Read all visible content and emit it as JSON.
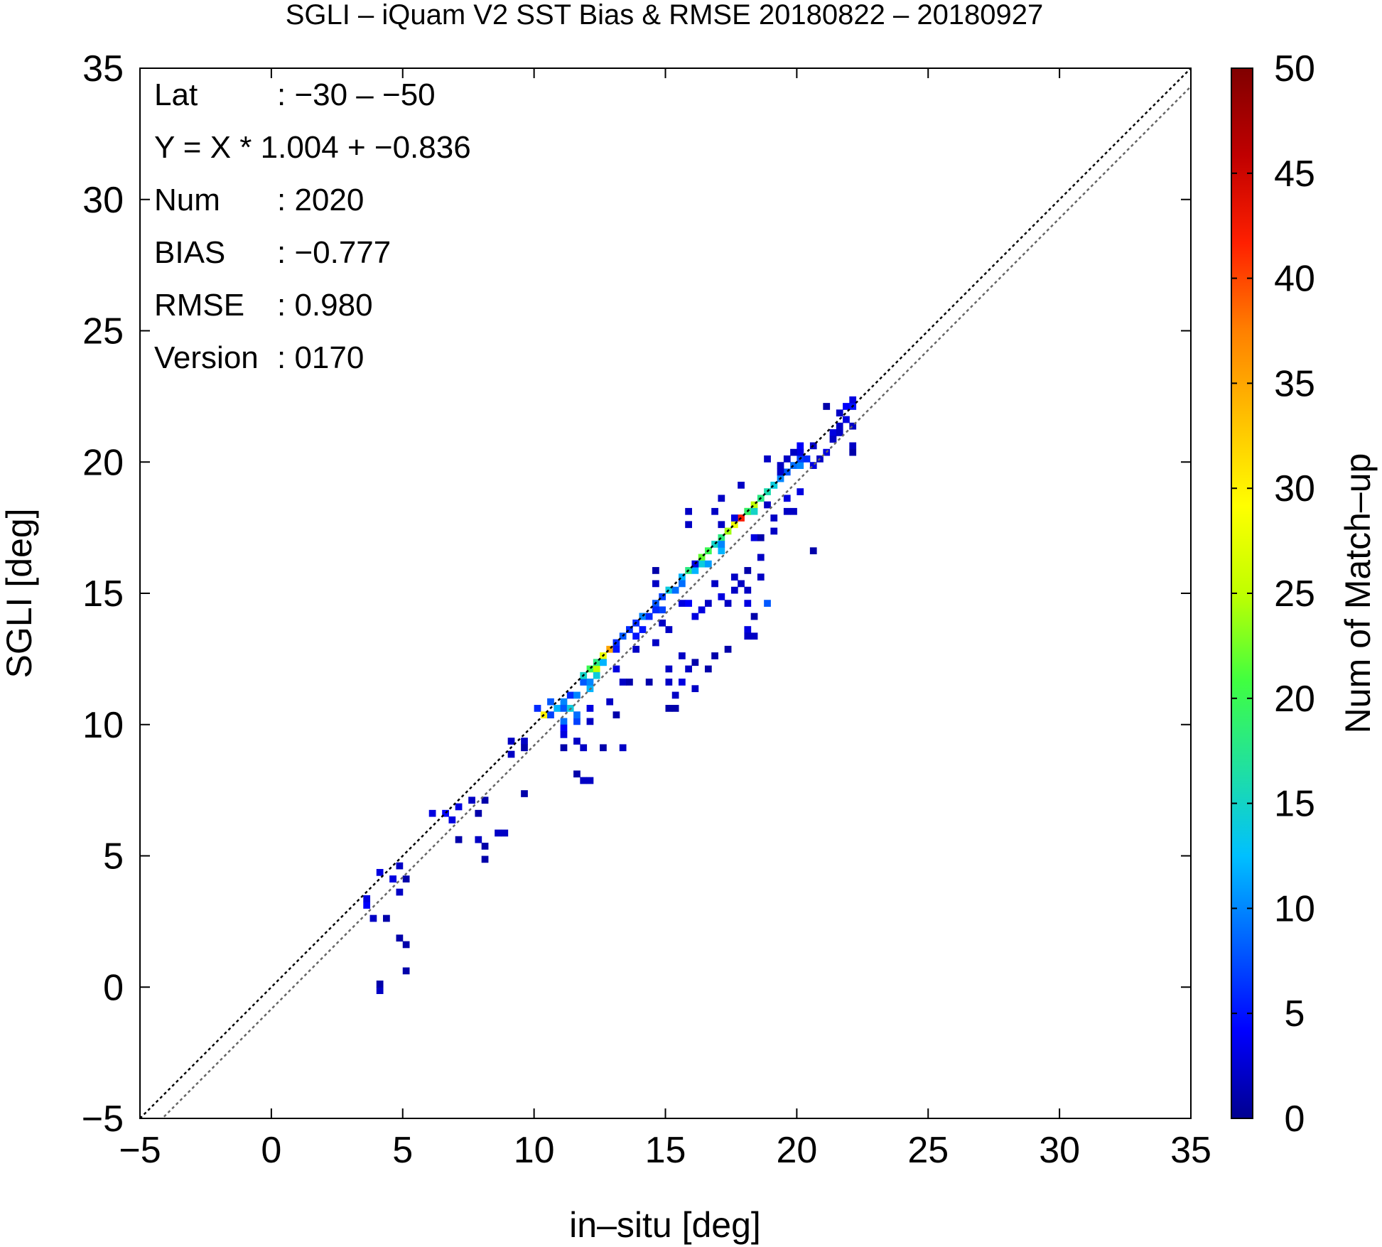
{
  "chart_data": {
    "type": "heatmap",
    "title": "SGLI – iQuam V2 SST Bias & RMSE 20180822 – 20180927",
    "xlabel": "in–situ [deg]",
    "ylabel": "SGLI [deg]",
    "xlim": [
      -5,
      35
    ],
    "ylim": [
      -5,
      35
    ],
    "xticks": [
      "−5",
      "0",
      "5",
      "10",
      "15",
      "20",
      "25",
      "30",
      "35"
    ],
    "yticks": [
      "−5",
      "0",
      "5",
      "10",
      "15",
      "20",
      "25",
      "30",
      "35"
    ],
    "grid": false,
    "bin_size": 0.25,
    "reference_lines": [
      {
        "slope": 1.0,
        "intercept": 0.0,
        "style": "dotted",
        "color": "#000000"
      },
      {
        "slope": 1.004,
        "intercept": -0.836,
        "style": "dotted",
        "color": "#666666"
      }
    ],
    "stats": [
      {
        "label": "Lat",
        "value": ": −30 – −50"
      },
      {
        "label": "Y = X * 1.004 + −0.836",
        "value": ""
      },
      {
        "label": "Num",
        "value": ": 2020"
      },
      {
        "label": "BIAS",
        "value": ": −0.777"
      },
      {
        "label": "RMSE",
        "value": ": 0.980"
      },
      {
        "label": "Version",
        "value": ": 0170"
      }
    ],
    "colorbar": {
      "label": "Num of Match–up",
      "min": 0,
      "max": 50,
      "ticks": [
        "0",
        "5",
        "10",
        "15",
        "20",
        "25",
        "30",
        "35",
        "40",
        "45",
        "50"
      ],
      "colormap": [
        "#00008f",
        "#0000ff",
        "#0060ff",
        "#00c0ff",
        "#20e0a0",
        "#40ff40",
        "#c0ff00",
        "#ffff00",
        "#ffc000",
        "#ff8000",
        "#ff2000",
        "#c00000",
        "#800000"
      ]
    },
    "points": [
      [
        3.5,
        3.0,
        4
      ],
      [
        3.6,
        3.3,
        3
      ],
      [
        3.9,
        2.6,
        2
      ],
      [
        4.1,
        4.4,
        3
      ],
      [
        4.5,
        4.2,
        4
      ],
      [
        4.6,
        4.0,
        3
      ],
      [
        4.8,
        3.7,
        2
      ],
      [
        4.9,
        4.6,
        2
      ],
      [
        4.3,
        2.5,
        1
      ],
      [
        4.8,
        1.9,
        1
      ],
      [
        5.0,
        1.7,
        1
      ],
      [
        4.0,
        -0.1,
        2
      ],
      [
        4.1,
        0.2,
        1
      ],
      [
        5.0,
        0.7,
        1
      ],
      [
        5.2,
        4.2,
        1
      ],
      [
        6.1,
        6.5,
        3
      ],
      [
        6.5,
        6.6,
        4
      ],
      [
        6.8,
        6.4,
        3
      ],
      [
        7.2,
        6.9,
        3
      ],
      [
        7.5,
        7.1,
        2
      ],
      [
        7.0,
        5.7,
        1
      ],
      [
        7.8,
        6.6,
        1
      ],
      [
        8.0,
        7.0,
        1
      ],
      [
        7.9,
        5.7,
        2
      ],
      [
        8.0,
        5.3,
        1
      ],
      [
        8.1,
        4.9,
        1
      ],
      [
        8.6,
        5.9,
        2
      ],
      [
        8.8,
        5.8,
        2
      ],
      [
        9.0,
        8.9,
        2
      ],
      [
        9.2,
        9.3,
        2
      ],
      [
        9.6,
        9.3,
        2
      ],
      [
        9.7,
        9.0,
        1
      ],
      [
        9.5,
        7.3,
        1
      ],
      [
        10.1,
        10.6,
        6
      ],
      [
        10.3,
        10.4,
        30
      ],
      [
        10.5,
        10.8,
        8
      ],
      [
        10.7,
        10.3,
        7
      ],
      [
        10.9,
        10.6,
        12
      ],
      [
        11.0,
        10.9,
        10
      ],
      [
        11.2,
        10.5,
        8
      ],
      [
        11.3,
        11.0,
        6
      ],
      [
        11.1,
        10.2,
        9
      ],
      [
        11.4,
        10.7,
        14
      ],
      [
        11.6,
        11.2,
        10
      ],
      [
        11.5,
        10.0,
        7
      ],
      [
        11.7,
        10.4,
        9
      ],
      [
        11.8,
        11.5,
        8
      ],
      [
        11.9,
        11.9,
        15
      ],
      [
        12.0,
        11.3,
        12
      ],
      [
        12.1,
        12.0,
        20
      ],
      [
        12.2,
        11.6,
        10
      ],
      [
        12.3,
        12.2,
        25
      ],
      [
        12.4,
        12.4,
        18
      ],
      [
        12.5,
        12.3,
        15
      ],
      [
        12.6,
        12.6,
        28
      ],
      [
        12.7,
        12.4,
        12
      ],
      [
        12.8,
        12.8,
        35
      ],
      [
        12.3,
        11.9,
        14
      ],
      [
        11.0,
        9.8,
        4
      ],
      [
        11.2,
        9.6,
        3
      ],
      [
        11.6,
        9.4,
        2
      ],
      [
        11.9,
        9.0,
        2
      ],
      [
        12.0,
        10.5,
        3
      ],
      [
        12.2,
        10.0,
        2
      ],
      [
        11.5,
        8.2,
        1
      ],
      [
        11.9,
        7.8,
        2
      ],
      [
        12.1,
        7.8,
        2
      ],
      [
        12.7,
        9.0,
        1
      ],
      [
        13.4,
        9.1,
        2
      ],
      [
        12.9,
        10.8,
        2
      ],
      [
        13.0,
        10.3,
        1
      ],
      [
        11.2,
        9.0,
        1
      ],
      [
        13.0,
        13.0,
        6
      ],
      [
        13.2,
        12.9,
        5
      ],
      [
        13.4,
        13.3,
        8
      ],
      [
        13.6,
        13.6,
        6
      ],
      [
        13.8,
        13.4,
        5
      ],
      [
        14.0,
        14.0,
        8
      ],
      [
        14.2,
        14.2,
        10
      ],
      [
        14.4,
        14.0,
        6
      ],
      [
        14.6,
        14.6,
        8
      ],
      [
        14.8,
        14.4,
        7
      ],
      [
        15.0,
        15.0,
        10
      ],
      [
        15.2,
        15.2,
        14
      ],
      [
        15.4,
        15.0,
        9
      ],
      [
        15.6,
        15.6,
        12
      ],
      [
        15.8,
        15.8,
        18
      ],
      [
        16.0,
        16.1,
        16
      ],
      [
        16.2,
        15.9,
        12
      ],
      [
        16.4,
        16.4,
        22
      ],
      [
        16.6,
        16.5,
        20
      ],
      [
        16.8,
        16.8,
        15
      ],
      [
        17.0,
        16.6,
        12
      ],
      [
        17.2,
        17.1,
        18
      ],
      [
        17.4,
        17.3,
        24
      ],
      [
        17.6,
        17.6,
        28
      ],
      [
        17.8,
        17.8,
        42
      ],
      [
        18.0,
        18.0,
        30
      ],
      [
        18.2,
        18.2,
        22
      ],
      [
        18.4,
        18.4,
        25
      ],
      [
        18.6,
        18.6,
        18
      ],
      [
        18.8,
        18.8,
        16
      ],
      [
        19.0,
        19.0,
        12
      ],
      [
        19.2,
        19.1,
        14
      ],
      [
        19.4,
        19.3,
        10
      ],
      [
        19.6,
        19.6,
        8
      ],
      [
        19.8,
        19.8,
        9
      ],
      [
        20.0,
        19.9,
        10
      ],
      [
        20.2,
        20.2,
        7
      ],
      [
        20.4,
        20.2,
        6
      ],
      [
        20.5,
        19.8,
        3
      ],
      [
        20.0,
        20.4,
        4
      ],
      [
        16.4,
        16.0,
        14
      ],
      [
        16.6,
        16.2,
        11
      ],
      [
        17.2,
        16.9,
        10
      ],
      [
        18.1,
        18.1,
        19
      ],
      [
        18.3,
        18.0,
        15
      ],
      [
        15.5,
        15.4,
        9
      ],
      [
        14.9,
        14.8,
        7
      ],
      [
        13.9,
        13.8,
        6
      ],
      [
        14.1,
        13.6,
        5
      ],
      [
        14.5,
        14.3,
        6
      ],
      [
        13.0,
        12.2,
        3
      ],
      [
        13.3,
        11.7,
        2
      ],
      [
        13.5,
        11.5,
        1
      ],
      [
        14.3,
        11.5,
        1
      ],
      [
        13.8,
        12.9,
        2
      ],
      [
        14.6,
        13.2,
        2
      ],
      [
        15.0,
        12.2,
        2
      ],
      [
        15.2,
        11.6,
        2
      ],
      [
        15.4,
        11.2,
        2
      ],
      [
        15.6,
        12.5,
        2
      ],
      [
        15.7,
        11.7,
        3
      ],
      [
        15.3,
        10.7,
        1
      ],
      [
        15.0,
        10.5,
        1
      ],
      [
        15.9,
        12.0,
        2
      ],
      [
        16.1,
        11.4,
        2
      ],
      [
        16.2,
        12.4,
        1
      ],
      [
        16.5,
        12.0,
        1
      ],
      [
        16.9,
        12.7,
        1
      ],
      [
        14.9,
        13.8,
        2
      ],
      [
        14.6,
        15.9,
        1
      ],
      [
        14.6,
        15.4,
        2
      ],
      [
        15.2,
        13.6,
        2
      ],
      [
        15.5,
        14.5,
        3
      ],
      [
        15.9,
        14.6,
        4
      ],
      [
        16.1,
        14.1,
        3
      ],
      [
        16.4,
        14.3,
        3
      ],
      [
        16.7,
        14.6,
        2
      ],
      [
        16.9,
        15.3,
        2
      ],
      [
        17.0,
        14.8,
        3
      ],
      [
        17.3,
        14.5,
        2
      ],
      [
        17.5,
        15.2,
        2
      ],
      [
        17.7,
        15.6,
        2
      ],
      [
        17.9,
        15.4,
        2
      ],
      [
        18.1,
        14.6,
        3
      ],
      [
        18.2,
        15.1,
        2
      ],
      [
        18.3,
        14.2,
        1
      ],
      [
        18.0,
        13.6,
        3
      ],
      [
        18.1,
        13.4,
        2
      ],
      [
        18.3,
        13.4,
        2
      ],
      [
        18.1,
        15.8,
        1
      ],
      [
        17.3,
        12.8,
        1
      ],
      [
        15.9,
        18.1,
        2
      ],
      [
        15.9,
        17.6,
        2
      ],
      [
        16.1,
        16.2,
        3
      ],
      [
        17.1,
        18.5,
        2
      ],
      [
        17.2,
        17.6,
        2
      ],
      [
        16.8,
        18.0,
        2
      ],
      [
        17.5,
        17.9,
        3
      ],
      [
        17.8,
        19.0,
        2
      ],
      [
        18.3,
        17.1,
        3
      ],
      [
        18.5,
        16.4,
        2
      ],
      [
        18.6,
        17.0,
        1
      ],
      [
        18.8,
        18.3,
        2
      ],
      [
        19.0,
        17.9,
        2
      ],
      [
        19.2,
        17.3,
        2
      ],
      [
        19.5,
        18.5,
        3
      ],
      [
        19.7,
        18.2,
        2
      ],
      [
        19.9,
        18.0,
        2
      ],
      [
        18.9,
        14.6,
        8
      ],
      [
        18.7,
        15.6,
        2
      ],
      [
        18.9,
        20.0,
        2
      ],
      [
        19.3,
        19.5,
        2
      ],
      [
        19.5,
        20.0,
        2
      ],
      [
        20.0,
        20.3,
        3
      ],
      [
        20.5,
        20.6,
        2
      ],
      [
        20.8,
        20.2,
        2
      ],
      [
        21.1,
        20.3,
        3
      ],
      [
        20.7,
        16.6,
        1
      ],
      [
        19.4,
        19.9,
        2
      ],
      [
        19.8,
        20.3,
        2
      ],
      [
        21.3,
        21.0,
        3
      ],
      [
        21.6,
        21.3,
        2
      ],
      [
        21.8,
        22.0,
        4
      ],
      [
        22.0,
        22.1,
        5
      ],
      [
        22.1,
        22.3,
        3
      ],
      [
        21.2,
        22.0,
        1
      ],
      [
        21.5,
        21.8,
        2
      ],
      [
        22.1,
        21.4,
        2
      ],
      [
        22.1,
        20.7,
        2
      ],
      [
        22.1,
        20.4,
        1
      ],
      [
        21.3,
        20.8,
        2
      ],
      [
        21.7,
        21.1,
        2
      ],
      [
        20.2,
        20.5,
        4
      ],
      [
        21.9,
        21.5,
        3
      ],
      [
        20.1,
        18.9,
        3
      ]
    ]
  }
}
